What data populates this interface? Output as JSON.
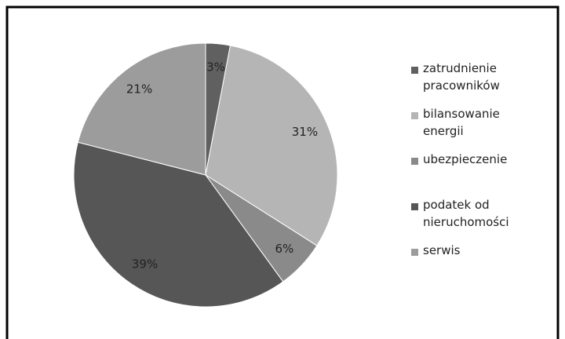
{
  "chart_data": {
    "type": "pie",
    "categories": [
      "zatrudnienie pracowników",
      "bilansowanie energii",
      "ubezpieczenie",
      "podatek od nieruchomości",
      "serwis"
    ],
    "values": [
      3,
      31,
      6,
      39,
      21
    ],
    "value_labels": [
      "3%",
      "31%",
      "6%",
      "39%",
      "21%"
    ],
    "colors": [
      "#606060",
      "#b5b5b5",
      "#8a8a8a",
      "#565656",
      "#9c9c9c"
    ],
    "legend": "right"
  }
}
